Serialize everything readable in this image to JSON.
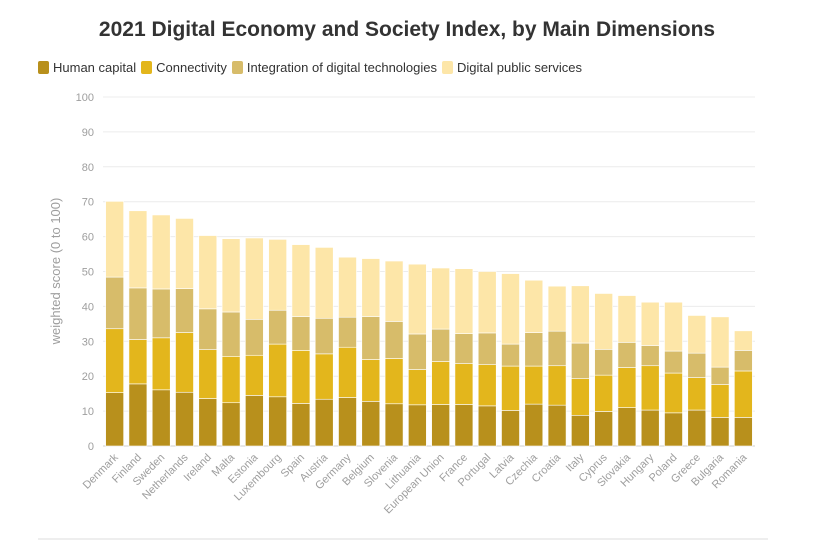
{
  "chart_data": {
    "type": "bar",
    "stacked": true,
    "title": "2021 Digital Economy and Society Index, by Main Dimensions",
    "ylabel": "weighted score (0 to 100)",
    "xlabel": "",
    "ylim": [
      0,
      100
    ],
    "yticks": [
      0,
      10,
      20,
      30,
      40,
      50,
      60,
      70,
      80,
      90,
      100
    ],
    "grid": true,
    "legend_position": "top-left",
    "categories": [
      "Denmark",
      "Finland",
      "Sweden",
      "Netherlands",
      "Ireland",
      "Malta",
      "Estonia",
      "Luxembourg",
      "Spain",
      "Austria",
      "Germany",
      "Belgium",
      "Slovenia",
      "Lithuania",
      "European Union",
      "France",
      "Portugal",
      "Latvia",
      "Czechia",
      "Croatia",
      "Italy",
      "Cyprus",
      "Slovakia",
      "Hungary",
      "Poland",
      "Greece",
      "Bulgaria",
      "Romania"
    ],
    "series": [
      {
        "name": "Human capital",
        "color": "#b8901c",
        "values": [
          15.3,
          17.8,
          16.1,
          15.4,
          13.6,
          12.4,
          14.5,
          14.1,
          12.2,
          13.4,
          13.9,
          12.8,
          12.1,
          11.8,
          11.9,
          11.9,
          11.5,
          10.2,
          12.0,
          11.7,
          8.8,
          9.9,
          11.0,
          10.3,
          9.5,
          10.3,
          8.2,
          8.2
        ]
      },
      {
        "name": "Connectivity",
        "color": "#e3b61c",
        "values": [
          18.3,
          12.7,
          14.9,
          17.1,
          14.0,
          13.3,
          11.5,
          15.1,
          15.2,
          13.0,
          14.4,
          12.0,
          13.0,
          10.1,
          12.3,
          11.7,
          11.8,
          12.7,
          10.9,
          11.3,
          10.5,
          10.4,
          11.5,
          12.7,
          11.4,
          9.3,
          9.4,
          13.3
        ]
      },
      {
        "name": "Integration of digital technologies",
        "color": "#d7bc6a",
        "values": [
          14.8,
          14.8,
          14.0,
          12.6,
          11.7,
          12.7,
          10.3,
          9.7,
          9.7,
          10.2,
          8.6,
          12.3,
          10.6,
          10.2,
          9.3,
          8.6,
          9.1,
          6.3,
          9.6,
          9.9,
          10.2,
          7.4,
          7.2,
          5.8,
          6.3,
          7.0,
          5.0,
          5.9
        ]
      },
      {
        "name": "Digital public services",
        "color": "#fde6a8",
        "values": [
          21.7,
          22.1,
          21.2,
          20.1,
          21.0,
          21.0,
          23.3,
          20.3,
          20.6,
          20.3,
          17.2,
          16.6,
          17.3,
          20.0,
          17.5,
          18.6,
          17.6,
          20.2,
          15.0,
          12.9,
          16.4,
          16.0,
          13.4,
          12.4,
          14.0,
          10.8,
          14.4,
          5.6
        ]
      }
    ]
  }
}
